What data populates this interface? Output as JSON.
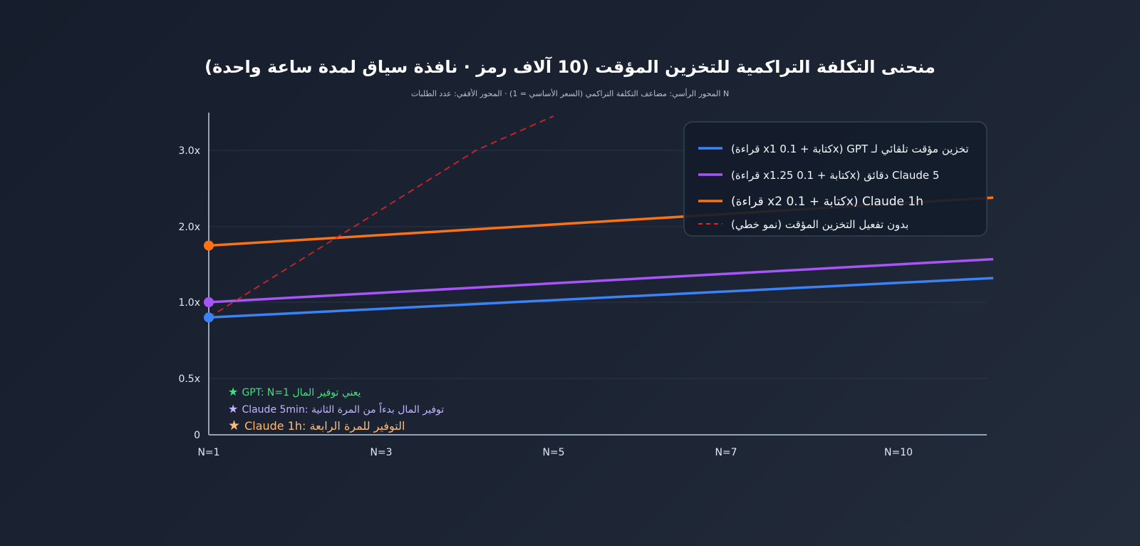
{
  "page": {
    "title": "منحنى التكلفة التراكمية للتخزين المؤقت (10 آلاف رمز · نافذة سياق لمدة ساعة واحدة)",
    "subtitle": "N المحور الرأسي: مضاعف التكلفة التراكمي (السعر الأساسي = 1) · المحور الأفقي: عدد الطلبات"
  },
  "colors": {
    "gpt": "#3b82f6",
    "claude5": "#a855f7",
    "claude1h": "#f97316",
    "nocache": "#dc2626",
    "grid": "#334155",
    "axis": "#94a3b8"
  },
  "chart_data": {
    "type": "line",
    "title": "منحنى التكلفة التراكمية للتخزين المؤقت (10 آلاف رمز · نافذة سياق لمدة ساعة واحدة)",
    "subtitle": "N المحور الرأسي: مضاعف التكلفة التراكمي (السعر الأساسي = 1) · المحور الأفقي: عدد الطلبات",
    "x_tick_labels": [
      "N=1",
      "N=3",
      "N=5",
      "N=7",
      "N=10"
    ],
    "y_tick_labels": [
      "0",
      "0.5x",
      "1.0x",
      "2.0x",
      "3.0x"
    ],
    "grid": true,
    "legend_position": "top-right",
    "series": [
      {
        "key": "gpt",
        "name": "(قراءة xكتابة + 0.1 1x) GPT تخزين مؤقت تلقائي لـ",
        "color": "#3b82f6",
        "dash": false,
        "points": [
          [
            1,
            0.9
          ],
          [
            10.1,
            1.32
          ]
        ]
      },
      {
        "key": "claude5",
        "name": "(قراءة xكتابة + 0.1 1.25x) دقائق Claude 5",
        "color": "#a855f7",
        "dash": false,
        "points": [
          [
            1,
            1.0
          ],
          [
            10.1,
            1.57
          ]
        ]
      },
      {
        "key": "claude1h",
        "name": "(قراءة xكتابة + 0.1 2x) Claude 1h",
        "color": "#f97316",
        "dash": false,
        "points": [
          [
            1,
            1.75
          ],
          [
            10.1,
            2.38
          ]
        ]
      },
      {
        "key": "nocache",
        "name": "بدون تفعيل التخزين المؤقت (نمو خطي)",
        "color": "#dc2626",
        "dash": true,
        "points": [
          [
            1,
            0.9
          ],
          [
            4.1,
            3.0
          ],
          [
            5.0,
            3.45
          ]
        ]
      }
    ],
    "start_markers": [
      {
        "series": "gpt",
        "x": 1,
        "y": 0.9
      },
      {
        "series": "claude5",
        "x": 1,
        "y": 1.0
      },
      {
        "series": "claude1h",
        "x": 1,
        "y": 1.75
      }
    ]
  },
  "annotations": [
    {
      "star": "★",
      "text": "GPT: N=1 يعني توفير المال",
      "color": "#4ade80"
    },
    {
      "star": "★",
      "text": "Claude 5min: توفير المال بدءاً من المرة الثانية",
      "color": "#c4b5fd"
    },
    {
      "star": "★",
      "text": "Claude 1h: التوفير للمرة الرابعة",
      "color": "#fdba74"
    }
  ]
}
